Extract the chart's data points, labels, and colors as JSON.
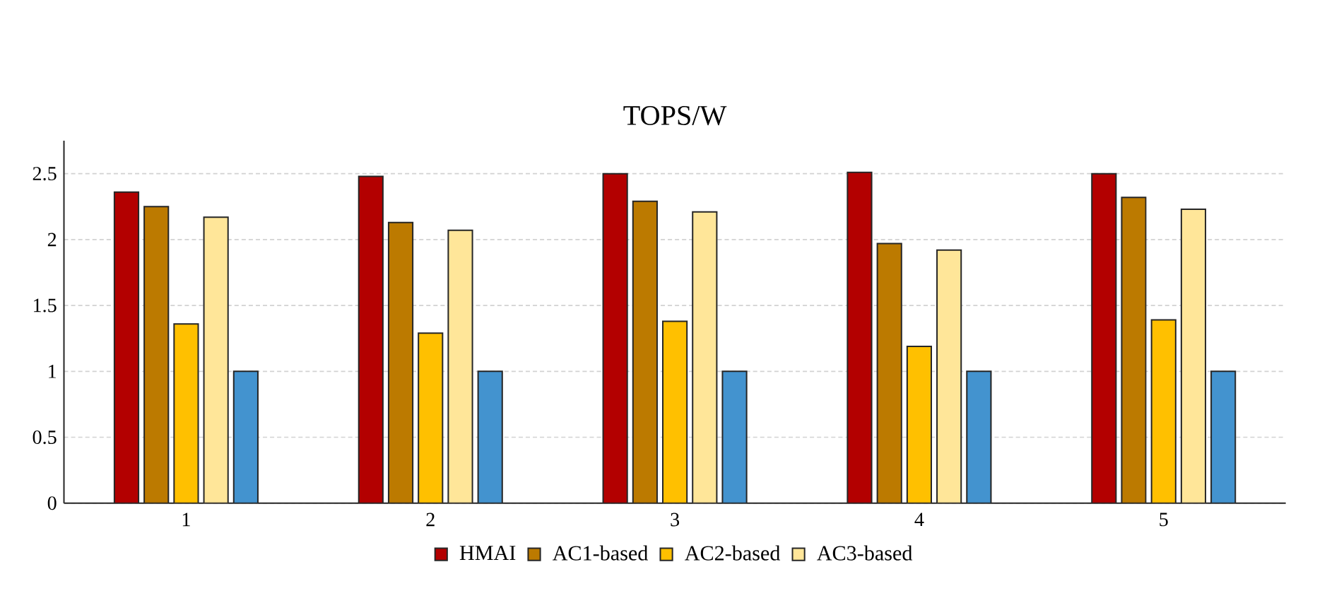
{
  "chart_data": {
    "type": "bar",
    "title": "TOPS/W",
    "categories": [
      "1",
      "2",
      "3",
      "4",
      "5"
    ],
    "series": [
      {
        "name": "HMAI",
        "color": "#b30000",
        "values": [
          2.36,
          2.48,
          2.5,
          2.51,
          2.5
        ]
      },
      {
        "name": "AC1-based",
        "color": "#bc7a00",
        "values": [
          2.25,
          2.13,
          2.29,
          1.97,
          2.32
        ]
      },
      {
        "name": "AC2-based",
        "color": "#ffc000",
        "values": [
          1.36,
          1.29,
          1.38,
          1.19,
          1.39
        ]
      },
      {
        "name": "AC3-based",
        "color": "#ffe699",
        "values": [
          2.17,
          2.07,
          2.21,
          1.92,
          2.23
        ]
      },
      {
        "color": "#4393cf",
        "values": [
          1,
          1,
          1,
          1,
          1
        ]
      }
    ],
    "ylim": [
      0,
      2.75
    ],
    "yticks": [
      0,
      0.5,
      1,
      1.5,
      2,
      2.5
    ],
    "grid": "y",
    "legend": "bottom"
  }
}
